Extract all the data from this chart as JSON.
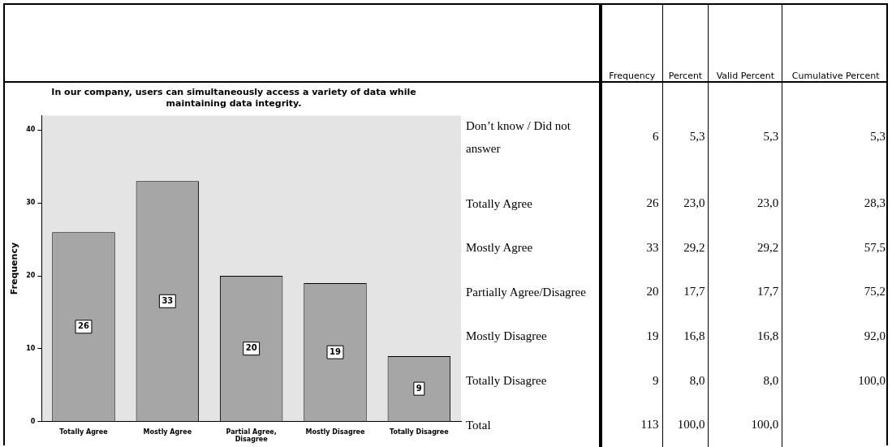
{
  "chart_data": [
    {
      "type": "bar",
      "title": "In our company, users can simultaneously access a variety of data while maintaining data integrity.",
      "ylabel": "Frequency",
      "categories": [
        "Totally Agree",
        "Mostly Agree",
        "Partial Agree, Disagree",
        "Mostly Disagree",
        "Totally Disagree"
      ],
      "values": [
        26,
        33,
        20,
        19,
        9
      ],
      "color": "#a6a6a6",
      "ylim": [
        0,
        42
      ],
      "yticks": [
        0,
        10,
        20,
        30,
        40
      ],
      "grid": false,
      "legend": false,
      "data_labels": true
    },
    {
      "type": "other",
      "categories": [
        "Frequency",
        "Percent",
        "Valid Percent",
        "Cumulative Percent"
      ],
      "y_categories": [
        "Don’t know / Did not answer",
        "Totally Agree",
        "Mostly Agree",
        "Partially Agree/Disagree",
        "Mostly Disagree",
        "Totally Disagree",
        "Total"
      ],
      "cell_labels": [
        [
          "6",
          "5,3",
          "5,3",
          "5,3"
        ],
        [
          "26",
          "23,0",
          "23,0",
          "28,3"
        ],
        [
          "33",
          "29,2",
          "29,2",
          "57,5"
        ],
        [
          "20",
          "17,7",
          "17,7",
          "75,2"
        ],
        [
          "19",
          "16,8",
          "16,8",
          "92,0"
        ],
        [
          "9",
          "8,0",
          "8,0",
          "100,0"
        ],
        [
          "113",
          "100,0",
          "100,0",
          null
        ]
      ]
    }
  ]
}
